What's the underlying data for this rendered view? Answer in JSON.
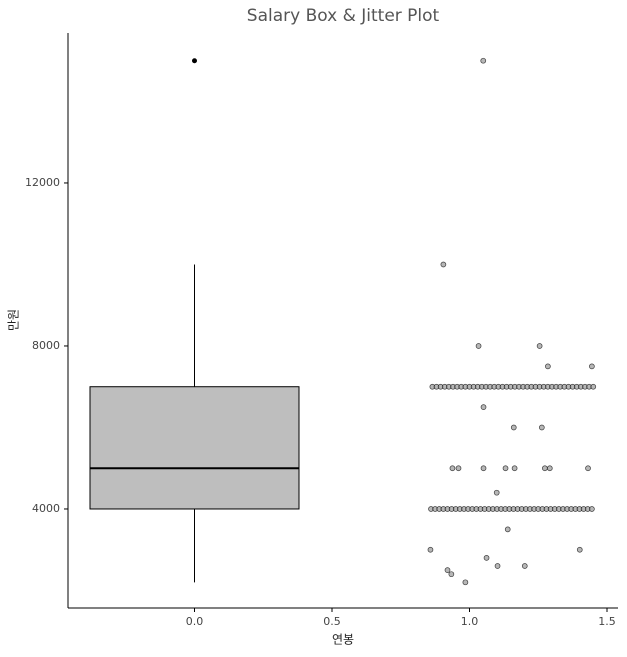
{
  "chart_data": {
    "type": "box",
    "title": "Salary Box  & Jitter Plot",
    "xlabel": "연봉",
    "ylabel": "만원",
    "xlim": [
      -0.46,
      1.54
    ],
    "xticks": [
      {
        "value": 0,
        "label": "0.0"
      },
      0.5,
      {
        "value": 1,
        "label": "1.0"
      },
      1.5
    ],
    "ylim": [
      1570,
      15680
    ],
    "yticks": [
      4000,
      8000,
      12000
    ],
    "box": {
      "x": 0,
      "whislo": 2200,
      "q1": 4000,
      "med": 5000,
      "q3": 7000,
      "whishi": 10000,
      "fliers": [
        15000
      ],
      "color": "#bebebe"
    },
    "jitter": {
      "color": "#999999",
      "x": [
        0.86,
        0.875,
        0.89,
        0.905,
        0.92,
        0.935,
        0.95,
        0.965,
        0.98,
        0.995,
        1.01,
        1.025,
        1.04,
        1.055,
        1.07,
        1.085,
        1.1,
        1.115,
        1.13,
        1.145,
        1.16,
        1.175,
        1.19,
        1.205,
        1.22,
        1.235,
        1.25,
        1.265,
        1.28,
        1.295,
        1.31,
        1.325,
        1.34,
        1.355,
        1.37,
        1.385,
        1.4,
        1.415,
        1.43,
        1.445,
        0.865,
        0.88,
        0.895,
        0.91,
        0.925,
        0.94,
        0.955,
        0.97,
        0.985,
        1.0,
        1.015,
        1.03,
        1.045,
        1.06,
        1.075,
        1.09,
        1.105,
        1.12,
        1.135,
        1.15,
        1.165,
        1.18,
        1.195,
        1.21,
        1.225,
        1.24,
        1.255,
        1.27,
        1.285,
        1.3,
        1.315,
        1.33,
        1.345,
        1.36,
        1.375,
        1.39,
        1.405,
        1.42,
        1.435,
        1.45,
        0.858,
        0.905,
        1.05,
        1.033,
        1.255,
        1.285,
        1.445,
        1.051,
        1.161,
        1.263,
        0.938,
        0.96,
        1.051,
        1.131,
        1.164,
        1.274,
        1.292,
        1.431,
        1.099,
        1.139,
        1.062,
        1.102,
        1.201,
        1.401,
        0.92,
        0.934,
        0.985
      ],
      "y": [
        4000,
        4000,
        4000,
        4000,
        4000,
        4000,
        4000,
        4000,
        4000,
        4000,
        4000,
        4000,
        4000,
        4000,
        4000,
        4000,
        4000,
        4000,
        4000,
        4000,
        4000,
        4000,
        4000,
        4000,
        4000,
        4000,
        4000,
        4000,
        4000,
        4000,
        4000,
        4000,
        4000,
        4000,
        4000,
        4000,
        4000,
        4000,
        4000,
        4000,
        7000,
        7000,
        7000,
        7000,
        7000,
        7000,
        7000,
        7000,
        7000,
        7000,
        7000,
        7000,
        7000,
        7000,
        7000,
        7000,
        7000,
        7000,
        7000,
        7000,
        7000,
        7000,
        7000,
        7000,
        7000,
        7000,
        7000,
        7000,
        7000,
        7000,
        7000,
        7000,
        7000,
        7000,
        7000,
        7000,
        7000,
        7000,
        7000,
        7000,
        3000,
        10000,
        15000,
        8000,
        8000,
        7500,
        7500,
        6500,
        6000,
        6000,
        5000,
        5000,
        5000,
        5000,
        5000,
        5000,
        5000,
        5000,
        4400,
        3500,
        2800,
        2600,
        2600,
        3000,
        2500,
        2400,
        2200
      ]
    }
  }
}
